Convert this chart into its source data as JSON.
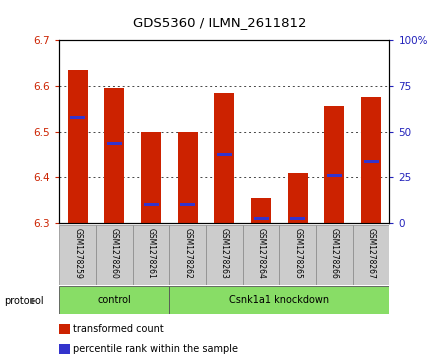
{
  "title": "GDS5360 / ILMN_2611812",
  "samples": [
    "GSM1278259",
    "GSM1278260",
    "GSM1278261",
    "GSM1278262",
    "GSM1278263",
    "GSM1278264",
    "GSM1278265",
    "GSM1278266",
    "GSM1278267"
  ],
  "transformed_counts": [
    6.635,
    6.595,
    6.5,
    6.5,
    6.585,
    6.355,
    6.41,
    6.555,
    6.575
  ],
  "percentile_values": [
    6.53,
    6.475,
    6.34,
    6.34,
    6.45,
    6.31,
    6.31,
    6.405,
    6.435
  ],
  "ylim_left": [
    6.3,
    6.7
  ],
  "yticks_left": [
    6.3,
    6.4,
    6.5,
    6.6,
    6.7
  ],
  "yticks_right": [
    0,
    25,
    50,
    75,
    100
  ],
  "bar_color": "#CC2200",
  "percentile_color": "#3333CC",
  "bar_width": 0.55,
  "protocol_groups": [
    {
      "label": "control",
      "start": 0,
      "end": 3
    },
    {
      "label": "Csnk1a1 knockdown",
      "start": 3,
      "end": 9
    }
  ],
  "green_color": "#88DD66",
  "legend_items": [
    {
      "color": "#CC2200",
      "label": "transformed count"
    },
    {
      "color": "#3333CC",
      "label": "percentile rank within the sample"
    }
  ],
  "ylabel_left_color": "#CC2200",
  "ylabel_right_color": "#2222BB",
  "protocol_label": "protocol",
  "plot_bg_color": "#FFFFFF",
  "sample_bg_color": "#CCCCCC",
  "grid_color": "#444444"
}
